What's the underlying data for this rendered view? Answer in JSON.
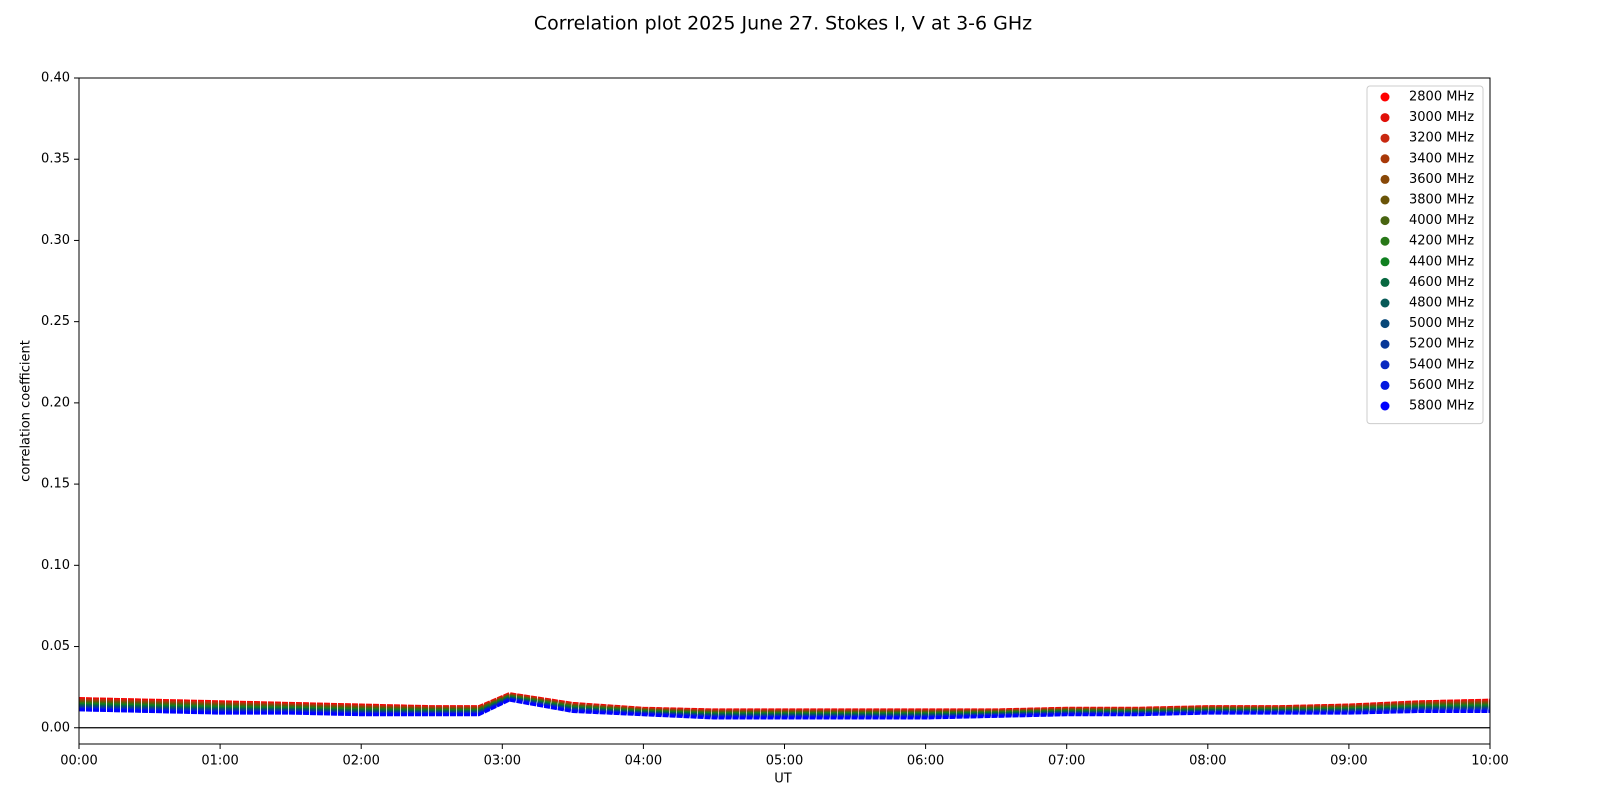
{
  "chart_data": {
    "type": "line",
    "title": "Correlation plot 2025 June 27. Stokes I, V at 3-6 GHz",
    "x_label": "UT",
    "y_label": "correlation coefficient",
    "x": [
      "00:00",
      "00:30",
      "01:00",
      "01:30",
      "02:00",
      "02:30",
      "02:50",
      "03:03",
      "03:30",
      "04:00",
      "04:30",
      "05:00",
      "05:30",
      "06:00",
      "06:30",
      "07:00",
      "07:30",
      "08:00",
      "08:30",
      "09:00",
      "09:30",
      "10:00"
    ],
    "xlim": [
      "00:00",
      "10:00"
    ],
    "xticks": [
      "00:00",
      "01:00",
      "02:00",
      "03:00",
      "04:00",
      "05:00",
      "06:00",
      "07:00",
      "08:00",
      "09:00",
      "10:00"
    ],
    "ylim": [
      -0.01,
      0.4
    ],
    "yticks": [
      {
        "value": 0,
        "label": "0.00"
      },
      0.05,
      {
        "value": 0.1,
        "label": "0.10"
      },
      0.15,
      {
        "value": 0.2,
        "label": "0.20"
      },
      0.25,
      {
        "value": 0.3,
        "label": "0.30"
      },
      0.35,
      {
        "value": 0.4,
        "label": "0.40"
      }
    ],
    "hline": 0,
    "legend_position": "upper right",
    "series": [
      {
        "name": "2800 MHz",
        "color": "#ff0000",
        "values": [
          0.018,
          0.017,
          0.016,
          0.015,
          0.014,
          0.013,
          0.013,
          0.021,
          0.015,
          0.012,
          0.011,
          0.011,
          0.011,
          0.011,
          0.011,
          0.012,
          0.012,
          0.013,
          0.013,
          0.014,
          0.016,
          0.017
        ]
      },
      {
        "name": "3000 MHz",
        "color": "#e01008",
        "values": [
          0.0175,
          0.0165,
          0.0155,
          0.0146,
          0.0136,
          0.0127,
          0.0127,
          0.0207,
          0.0147,
          0.0117,
          0.0107,
          0.0107,
          0.0107,
          0.0107,
          0.0107,
          0.0117,
          0.0117,
          0.0127,
          0.0127,
          0.0137,
          0.0156,
          0.0165
        ]
      },
      {
        "name": "3200 MHz",
        "color": "#c82810",
        "values": [
          0.0171,
          0.0161,
          0.0151,
          0.0142,
          0.0132,
          0.0123,
          0.0123,
          0.0205,
          0.0143,
          0.0115,
          0.0103,
          0.0103,
          0.0103,
          0.0103,
          0.0105,
          0.0115,
          0.0115,
          0.0125,
          0.0125,
          0.0133,
          0.0152,
          0.0161
        ]
      },
      {
        "name": "3400 MHz",
        "color": "#a83808",
        "values": [
          0.0166,
          0.0156,
          0.0146,
          0.0138,
          0.0128,
          0.012,
          0.012,
          0.0202,
          0.014,
          0.0112,
          0.01,
          0.01,
          0.01,
          0.01,
          0.0102,
          0.0112,
          0.0112,
          0.0122,
          0.0122,
          0.013,
          0.0148,
          0.0156
        ]
      },
      {
        "name": "3600 MHz",
        "color": "#884808",
        "values": [
          0.0161,
          0.0151,
          0.0141,
          0.0134,
          0.0124,
          0.0117,
          0.0117,
          0.0199,
          0.0137,
          0.0109,
          0.0097,
          0.0097,
          0.0097,
          0.0097,
          0.0099,
          0.0109,
          0.0109,
          0.0119,
          0.0119,
          0.0127,
          0.0144,
          0.0151
        ]
      },
      {
        "name": "3800 MHz",
        "color": "#6a5408",
        "values": [
          0.0157,
          0.0147,
          0.0137,
          0.013,
          0.012,
          0.0113,
          0.0113,
          0.0197,
          0.0133,
          0.0107,
          0.0093,
          0.0093,
          0.0093,
          0.0093,
          0.0097,
          0.0107,
          0.0107,
          0.0117,
          0.0117,
          0.0123,
          0.014,
          0.0147
        ]
      },
      {
        "name": "4000 MHz",
        "color": "#486410",
        "values": [
          0.0152,
          0.0142,
          0.0132,
          0.0126,
          0.0116,
          0.011,
          0.011,
          0.0194,
          0.013,
          0.0104,
          0.009,
          0.009,
          0.009,
          0.009,
          0.0094,
          0.0104,
          0.0104,
          0.0114,
          0.0114,
          0.012,
          0.0136,
          0.0142
        ]
      },
      {
        "name": "4200 MHz",
        "color": "#287818",
        "values": [
          0.0147,
          0.0137,
          0.0127,
          0.0122,
          0.0112,
          0.0107,
          0.0107,
          0.0191,
          0.0127,
          0.0101,
          0.0087,
          0.0087,
          0.0087,
          0.0087,
          0.0091,
          0.0101,
          0.0101,
          0.0111,
          0.0111,
          0.0117,
          0.0132,
          0.0137
        ]
      },
      {
        "name": "4400 MHz",
        "color": "#108020",
        "values": [
          0.0143,
          0.0133,
          0.0123,
          0.0118,
          0.0108,
          0.0103,
          0.0103,
          0.0189,
          0.0123,
          0.0099,
          0.0083,
          0.0083,
          0.0083,
          0.0083,
          0.0089,
          0.0099,
          0.0099,
          0.0109,
          0.0109,
          0.0113,
          0.0128,
          0.0133
        ]
      },
      {
        "name": "4600 MHz",
        "color": "#086840",
        "values": [
          0.0138,
          0.0128,
          0.0118,
          0.0114,
          0.0104,
          0.01,
          0.01,
          0.0186,
          0.012,
          0.0096,
          0.008,
          0.008,
          0.008,
          0.008,
          0.0086,
          0.0096,
          0.0096,
          0.0106,
          0.0106,
          0.011,
          0.0124,
          0.0128
        ]
      },
      {
        "name": "4800 MHz",
        "color": "#085a58",
        "values": [
          0.0133,
          0.0123,
          0.0113,
          0.011,
          0.01,
          0.0097,
          0.0097,
          0.0183,
          0.0117,
          0.0093,
          0.0077,
          0.0077,
          0.0077,
          0.0077,
          0.0083,
          0.0093,
          0.0093,
          0.0103,
          0.0103,
          0.0107,
          0.012,
          0.0123
        ]
      },
      {
        "name": "5000 MHz",
        "color": "#084878",
        "values": [
          0.0129,
          0.0119,
          0.0109,
          0.0106,
          0.0096,
          0.0093,
          0.0093,
          0.0181,
          0.0113,
          0.0091,
          0.0073,
          0.0073,
          0.0073,
          0.0073,
          0.0081,
          0.0091,
          0.0091,
          0.0101,
          0.0101,
          0.0103,
          0.0116,
          0.0119
        ]
      },
      {
        "name": "5200 MHz",
        "color": "#083898",
        "values": [
          0.0124,
          0.0114,
          0.0104,
          0.0102,
          0.0092,
          0.009,
          0.009,
          0.0178,
          0.011,
          0.0088,
          0.007,
          0.007,
          0.007,
          0.007,
          0.0078,
          0.0088,
          0.0088,
          0.0098,
          0.0098,
          0.01,
          0.0112,
          0.0114
        ]
      },
      {
        "name": "5400 MHz",
        "color": "#0828c0",
        "values": [
          0.0119,
          0.0109,
          0.0099,
          0.0098,
          0.0088,
          0.0087,
          0.0087,
          0.0175,
          0.0107,
          0.0085,
          0.0067,
          0.0067,
          0.0067,
          0.0067,
          0.0075,
          0.0085,
          0.0085,
          0.0095,
          0.0095,
          0.0097,
          0.0108,
          0.0109
        ]
      },
      {
        "name": "5600 MHz",
        "color": "#0418e0",
        "values": [
          0.0115,
          0.0105,
          0.0095,
          0.0094,
          0.0084,
          0.0083,
          0.0083,
          0.0173,
          0.0103,
          0.0083,
          0.0063,
          0.0063,
          0.0063,
          0.0063,
          0.0073,
          0.0083,
          0.0083,
          0.0093,
          0.0093,
          0.0093,
          0.0104,
          0.0105
        ]
      },
      {
        "name": "5800 MHz",
        "color": "#0000ff",
        "values": [
          0.011,
          0.01,
          0.009,
          0.009,
          0.008,
          0.008,
          0.008,
          0.017,
          0.01,
          0.008,
          0.006,
          0.006,
          0.006,
          0.006,
          0.007,
          0.008,
          0.008,
          0.009,
          0.009,
          0.009,
          0.01,
          0.01
        ]
      }
    ]
  }
}
